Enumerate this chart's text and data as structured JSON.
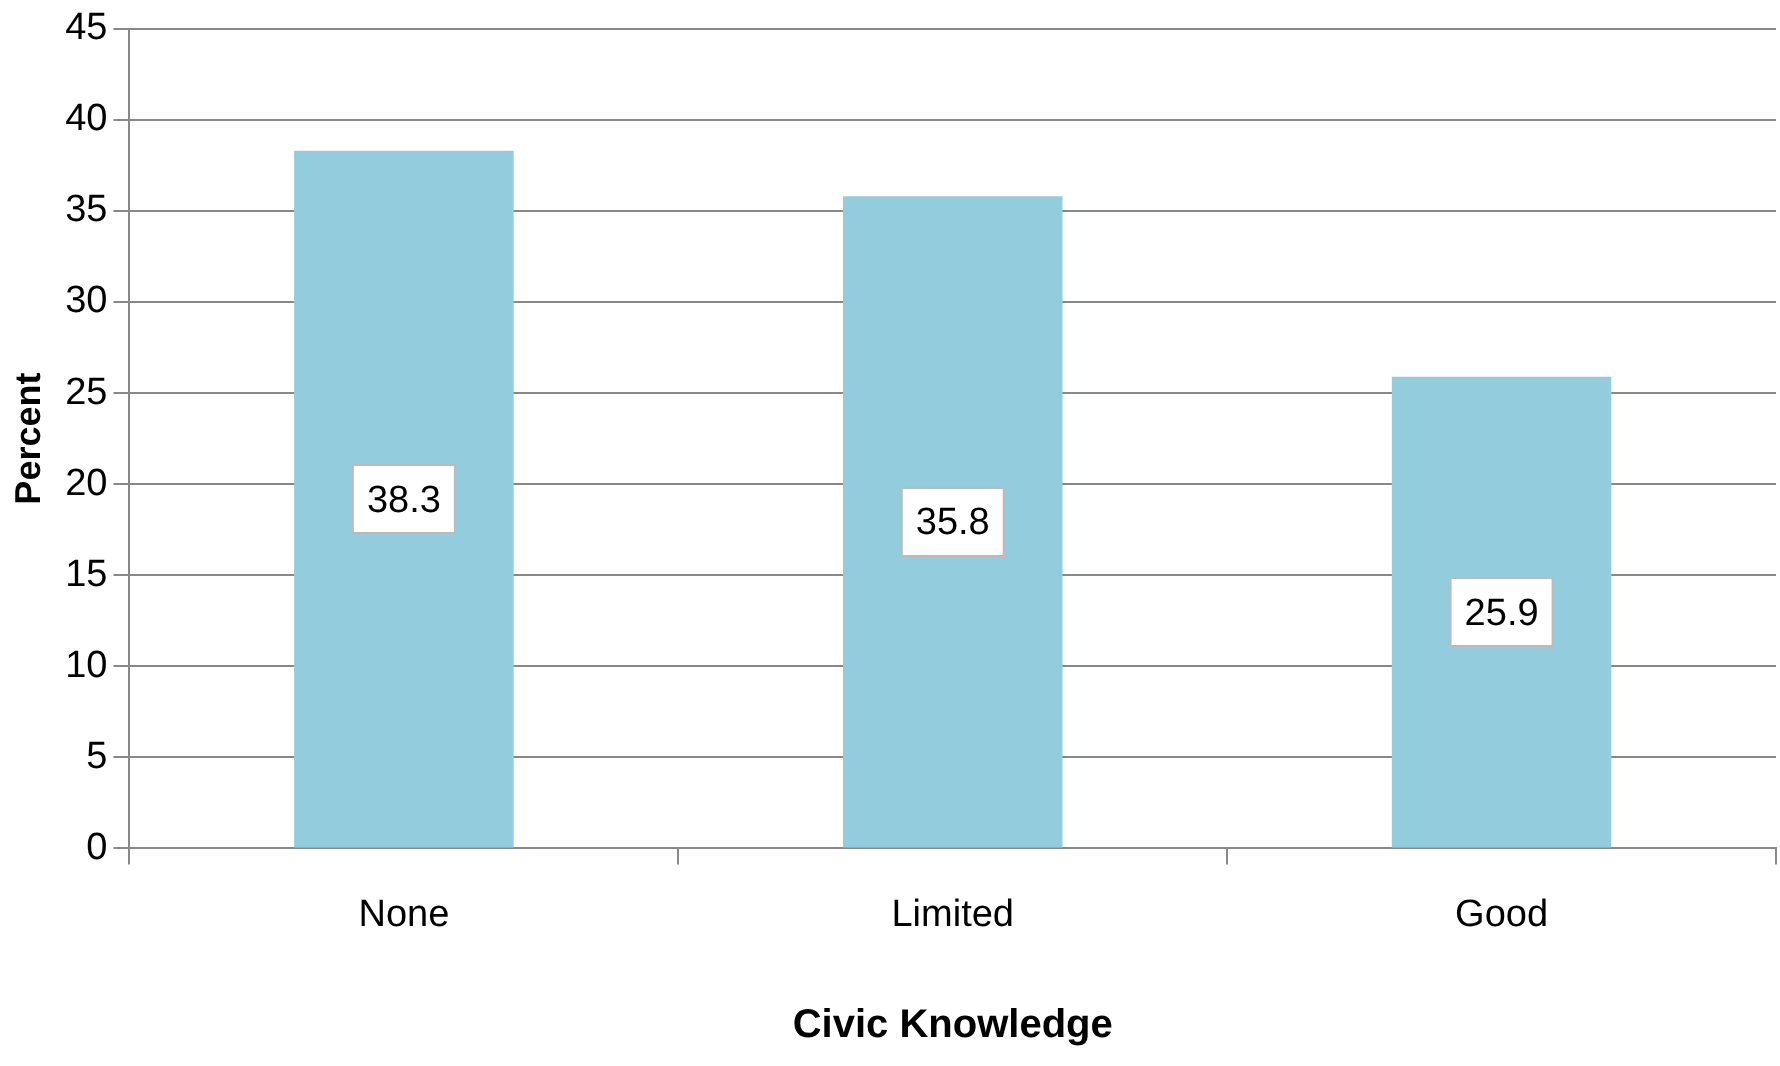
{
  "chart_data": {
    "type": "bar",
    "xlabel": "Civic Knowledge",
    "ylabel": "Percent",
    "categories": [
      "None",
      "Limited",
      "Good"
    ],
    "values": [
      38.3,
      35.8,
      25.9
    ],
    "color": "#93cddd",
    "ylim": [
      0,
      45
    ],
    "yticks": [
      0,
      5,
      10,
      15,
      20,
      25,
      30,
      35,
      40,
      45
    ],
    "grid": "y",
    "data_labels": true,
    "legend": false
  }
}
